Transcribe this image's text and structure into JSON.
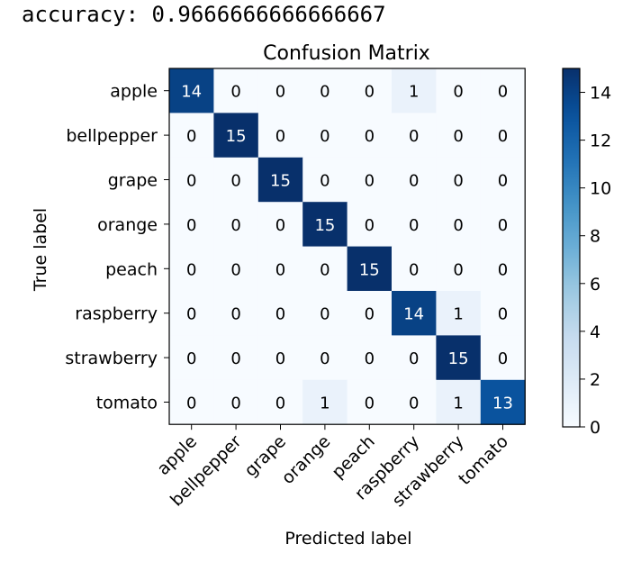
{
  "output": {
    "accuracy_line": "accuracy: 0.9666666666666667"
  },
  "chart_data": {
    "type": "heatmap",
    "title": "Confusion Matrix",
    "xlabel": "Predicted label",
    "ylabel": "True label",
    "x_categories": [
      "apple",
      "bellpepper",
      "grape",
      "orange",
      "peach",
      "raspberry",
      "strawberry",
      "tomato"
    ],
    "y_categories": [
      "apple",
      "bellpepper",
      "grape",
      "orange",
      "peach",
      "raspberry",
      "strawberry",
      "tomato"
    ],
    "values": [
      [
        14,
        0,
        0,
        0,
        0,
        1,
        0,
        0
      ],
      [
        0,
        15,
        0,
        0,
        0,
        0,
        0,
        0
      ],
      [
        0,
        0,
        15,
        0,
        0,
        0,
        0,
        0
      ],
      [
        0,
        0,
        0,
        15,
        0,
        0,
        0,
        0
      ],
      [
        0,
        0,
        0,
        0,
        15,
        0,
        0,
        0
      ],
      [
        0,
        0,
        0,
        0,
        0,
        14,
        1,
        0
      ],
      [
        0,
        0,
        0,
        0,
        0,
        0,
        15,
        0
      ],
      [
        0,
        0,
        0,
        1,
        0,
        0,
        1,
        13
      ]
    ],
    "colormap": "Blues",
    "color_low": "#f7fbff",
    "color_high": "#08306b",
    "vmin": 0,
    "vmax": 15,
    "colorbar_ticks": [
      0,
      2,
      4,
      6,
      8,
      10,
      12,
      14
    ],
    "text_color_dark": "#000000",
    "text_color_light": "#ffffff",
    "grid": false
  }
}
